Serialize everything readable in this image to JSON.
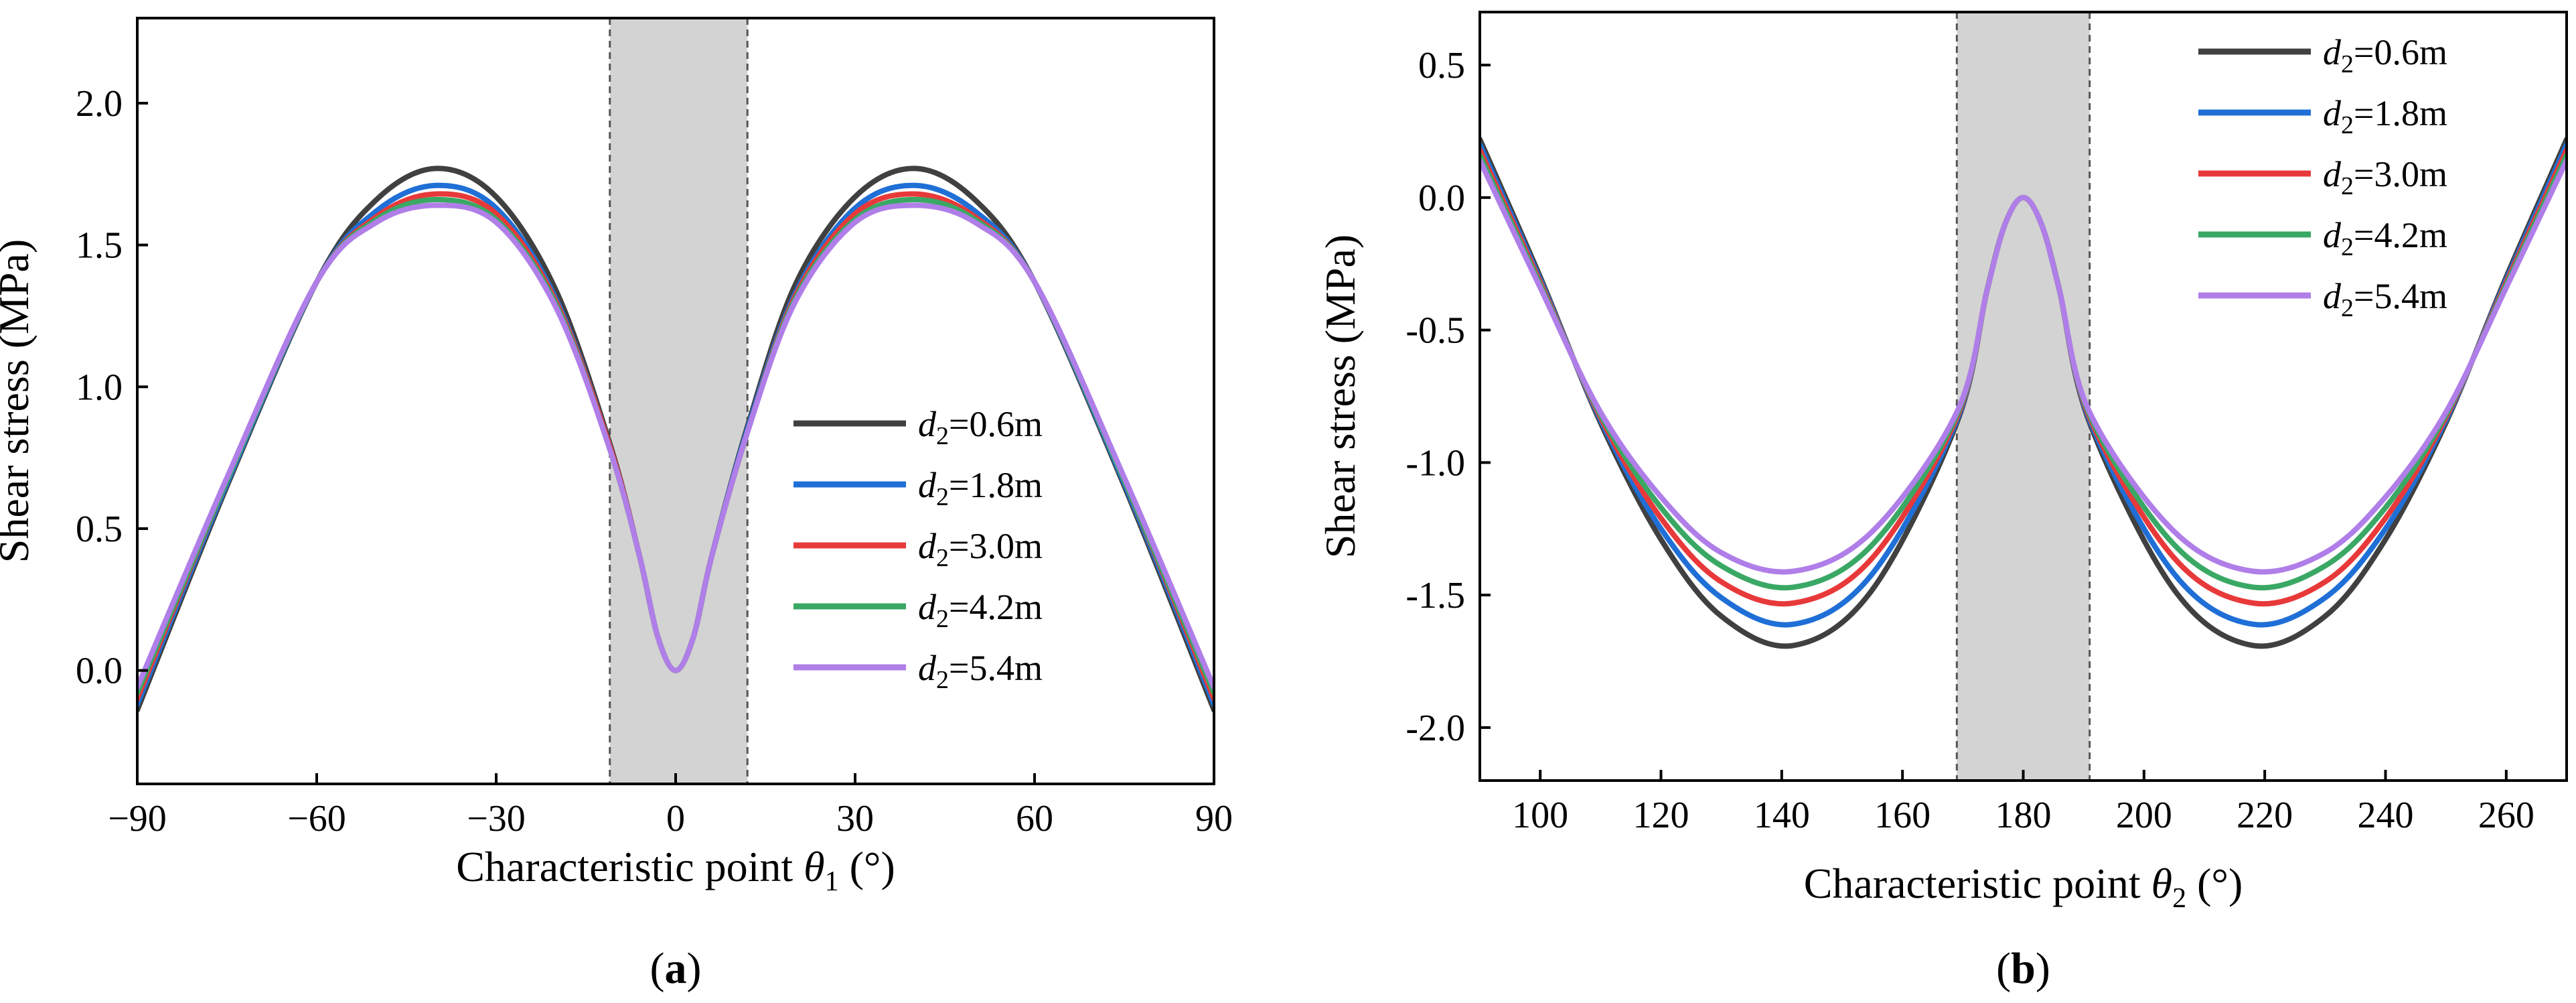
{
  "figure": {
    "panels": [
      {
        "label_open": "(",
        "label_letter": "a",
        "label_close": ")"
      },
      {
        "label_open": "(",
        "label_letter": "b",
        "label_close": ")"
      }
    ]
  },
  "chart_data": [
    {
      "type": "line",
      "panel": "a",
      "xlabel": "Characteristic point θ1 (°)",
      "xlabel_main": "Characteristic point ",
      "xlabel_sym": "θ",
      "xlabel_sub": "1",
      "xlabel_unit": " (°)",
      "ylabel": "Shear stress (MPa)",
      "xlim": [
        -90,
        90
      ],
      "ylim": [
        -0.4,
        2.3
      ],
      "xticks": [
        -90,
        -60,
        -30,
        0,
        30,
        60,
        90
      ],
      "xtick_labels": [
        "−90",
        "−60",
        "−30",
        "0",
        "30",
        "60",
        "90"
      ],
      "yticks": [
        0.0,
        0.5,
        1.0,
        1.5,
        2.0
      ],
      "ytick_labels": [
        "0.0",
        "0.5",
        "1.0",
        "1.5",
        "2.0"
      ],
      "shaded_region": [
        -11,
        12
      ],
      "legend_position": "lower-right",
      "x": [
        -90,
        -75,
        -60,
        -50,
        -40,
        -30,
        -20,
        -11,
        -6,
        -3,
        0,
        3,
        6,
        12,
        20,
        30,
        40,
        50,
        60,
        75,
        90
      ],
      "series": [
        {
          "name": "d2=0.6m",
          "name_sym": "d",
          "name_sub": "2",
          "name_rest": "=0.6m",
          "color": "#404040",
          "values": [
            -0.14,
            0.65,
            1.37,
            1.66,
            1.77,
            1.67,
            1.34,
            0.8,
            0.4,
            0.12,
            0.0,
            0.12,
            0.4,
            0.86,
            1.36,
            1.67,
            1.77,
            1.66,
            1.37,
            0.65,
            -0.14
          ]
        },
        {
          "name": "d2=1.8m",
          "name_sym": "d",
          "name_sub": "2",
          "name_rest": "=1.8m",
          "color": "#1f6fd6",
          "values": [
            -0.12,
            0.66,
            1.37,
            1.62,
            1.71,
            1.63,
            1.31,
            0.79,
            0.4,
            0.12,
            0.0,
            0.12,
            0.4,
            0.85,
            1.33,
            1.63,
            1.71,
            1.62,
            1.37,
            0.66,
            -0.12
          ]
        },
        {
          "name": "d2=3.0m",
          "name_sym": "d",
          "name_sub": "2",
          "name_rest": "=3.0m",
          "color": "#e8393a",
          "values": [
            -0.1,
            0.67,
            1.37,
            1.6,
            1.68,
            1.61,
            1.3,
            0.79,
            0.4,
            0.12,
            0.0,
            0.12,
            0.4,
            0.84,
            1.32,
            1.61,
            1.68,
            1.6,
            1.37,
            0.67,
            -0.1
          ]
        },
        {
          "name": "d2=4.2m",
          "name_sym": "d",
          "name_sub": "2",
          "name_rest": "=4.2m",
          "color": "#3aa865",
          "values": [
            -0.08,
            0.67,
            1.37,
            1.59,
            1.66,
            1.59,
            1.29,
            0.78,
            0.4,
            0.12,
            0.0,
            0.12,
            0.4,
            0.84,
            1.31,
            1.59,
            1.66,
            1.59,
            1.37,
            0.67,
            -0.08
          ]
        },
        {
          "name": "d2=5.4m",
          "name_sym": "d",
          "name_sub": "2",
          "name_rest": "=5.4m",
          "color": "#b07ee8",
          "values": [
            -0.06,
            0.68,
            1.37,
            1.58,
            1.64,
            1.58,
            1.28,
            0.78,
            0.4,
            0.12,
            0.0,
            0.12,
            0.4,
            0.84,
            1.3,
            1.58,
            1.64,
            1.58,
            1.37,
            0.68,
            -0.06
          ]
        }
      ]
    },
    {
      "type": "line",
      "panel": "b",
      "xlabel": "Characteristic point θ2 (°)",
      "xlabel_main": "Characteristic point ",
      "xlabel_sym": "θ",
      "xlabel_sub": "2",
      "xlabel_unit": " (°)",
      "ylabel": "Shear stress (MPa)",
      "xlim": [
        90,
        270
      ],
      "ylim": [
        -2.2,
        0.7
      ],
      "xticks": [
        100,
        120,
        140,
        160,
        180,
        200,
        220,
        240,
        260
      ],
      "xtick_labels": [
        "100",
        "120",
        "140",
        "160",
        "180",
        "200",
        "220",
        "240",
        "260"
      ],
      "yticks": [
        -2.0,
        -1.5,
        -1.0,
        -0.5,
        0.0,
        0.5
      ],
      "ytick_labels": [
        "-2.0",
        "-1.5",
        "-1.0",
        "-0.5",
        "0.0",
        "0.5"
      ],
      "shaded_region": [
        169,
        191
      ],
      "legend_position": "top-right",
      "x": [
        90,
        100,
        110,
        120,
        130,
        142,
        155,
        169,
        174,
        177,
        180,
        183,
        186,
        191,
        205,
        218,
        230,
        240,
        250,
        260,
        270
      ],
      "series": [
        {
          "name": "d2=0.6m",
          "name_sym": "d",
          "name_sub": "2",
          "name_rest": "=0.6m",
          "color": "#404040",
          "values": [
            0.22,
            -0.3,
            -0.85,
            -1.29,
            -1.58,
            -1.69,
            -1.48,
            -0.85,
            -0.35,
            -0.1,
            0.0,
            -0.1,
            -0.35,
            -0.85,
            -1.48,
            -1.69,
            -1.58,
            -1.29,
            -0.85,
            -0.3,
            0.22
          ]
        },
        {
          "name": "d2=1.8m",
          "name_sym": "d",
          "name_sub": "2",
          "name_rest": "=1.8m",
          "color": "#1f6fd6",
          "values": [
            0.2,
            -0.31,
            -0.84,
            -1.25,
            -1.51,
            -1.61,
            -1.42,
            -0.84,
            -0.35,
            -0.1,
            0.0,
            -0.1,
            -0.35,
            -0.84,
            -1.42,
            -1.61,
            -1.51,
            -1.25,
            -0.84,
            -0.31,
            0.2
          ]
        },
        {
          "name": "d2=3.0m",
          "name_sym": "d",
          "name_sub": "2",
          "name_rest": "=3.0m",
          "color": "#e8393a",
          "values": [
            0.18,
            -0.32,
            -0.83,
            -1.21,
            -1.45,
            -1.53,
            -1.36,
            -0.83,
            -0.35,
            -0.1,
            0.0,
            -0.1,
            -0.35,
            -0.83,
            -1.36,
            -1.53,
            -1.45,
            -1.21,
            -0.83,
            -0.32,
            0.18
          ]
        },
        {
          "name": "d2=4.2m",
          "name_sym": "d",
          "name_sub": "2",
          "name_rest": "=4.2m",
          "color": "#3aa865",
          "values": [
            0.16,
            -0.33,
            -0.82,
            -1.17,
            -1.39,
            -1.47,
            -1.31,
            -0.82,
            -0.35,
            -0.1,
            0.0,
            -0.1,
            -0.35,
            -0.82,
            -1.31,
            -1.47,
            -1.39,
            -1.17,
            -0.82,
            -0.33,
            0.16
          ]
        },
        {
          "name": "d2=5.4m",
          "name_sym": "d",
          "name_sub": "2",
          "name_rest": "=5.4m",
          "color": "#b07ee8",
          "values": [
            0.14,
            -0.34,
            -0.81,
            -1.13,
            -1.34,
            -1.41,
            -1.26,
            -0.81,
            -0.35,
            -0.1,
            0.0,
            -0.1,
            -0.35,
            -0.81,
            -1.26,
            -1.41,
            -1.34,
            -1.13,
            -0.81,
            -0.34,
            0.14
          ]
        }
      ]
    }
  ]
}
